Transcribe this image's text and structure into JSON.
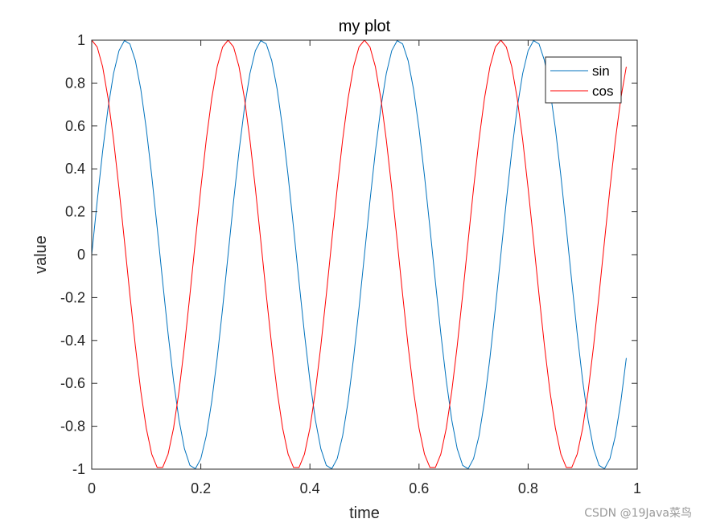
{
  "chart_data": {
    "type": "line",
    "title": "my plot",
    "xlabel": "time",
    "ylabel": "value",
    "xlim": [
      0,
      1
    ],
    "ylim": [
      -1,
      1
    ],
    "xticks": [
      0,
      0.2,
      0.4,
      0.6,
      0.8,
      1
    ],
    "xtick_labels": [
      "0",
      "0.2",
      "0.4",
      "0.6",
      "0.8",
      "1"
    ],
    "yticks": [
      1,
      0.8,
      0.6,
      0.4,
      0.2,
      0,
      -0.2,
      -0.4,
      -0.6,
      -0.8,
      -1
    ],
    "ytick_labels": [
      "1",
      "0.8",
      "0.6",
      "0.4",
      "0.2",
      "0",
      "-0.2",
      "-0.4",
      "-0.6",
      "-0.8",
      "-1"
    ],
    "grid": false,
    "legend_position": "top-right",
    "series": [
      {
        "name": "sin",
        "color": "#0072BD",
        "x": [
          0,
          0.01,
          0.02,
          0.03,
          0.04,
          0.05,
          0.06,
          0.07,
          0.08,
          0.09,
          0.1,
          0.11,
          0.12,
          0.13,
          0.14,
          0.15,
          0.16,
          0.17,
          0.18,
          0.19,
          0.2,
          0.21,
          0.22,
          0.23,
          0.24,
          0.25,
          0.26,
          0.27,
          0.28,
          0.29,
          0.3,
          0.31,
          0.32,
          0.33,
          0.34,
          0.35,
          0.36,
          0.37,
          0.38,
          0.39,
          0.4,
          0.41,
          0.42,
          0.43,
          0.44,
          0.45,
          0.46,
          0.47,
          0.48,
          0.49,
          0.5,
          0.51,
          0.52,
          0.53,
          0.54,
          0.55,
          0.56,
          0.57,
          0.58,
          0.59,
          0.6,
          0.61,
          0.62,
          0.63,
          0.64,
          0.65,
          0.66,
          0.67,
          0.68,
          0.69,
          0.7,
          0.71,
          0.72,
          0.73,
          0.74,
          0.75,
          0.76,
          0.77,
          0.78,
          0.79,
          0.8,
          0.81,
          0.82,
          0.83,
          0.84,
          0.85,
          0.86,
          0.87,
          0.88,
          0.89,
          0.9,
          0.91,
          0.92,
          0.93,
          0.94,
          0.95,
          0.96,
          0.97,
          0.98
        ],
        "y": [
          0,
          0.2487,
          0.4818,
          0.6845,
          0.8443,
          0.9511,
          0.998,
          0.9823,
          0.9048,
          0.7705,
          0.5878,
          0.3681,
          0.1253,
          -0.1253,
          -0.3681,
          -0.5878,
          -0.7705,
          -0.9048,
          -0.9823,
          -0.998,
          -0.9511,
          -0.8443,
          -0.6845,
          -0.4818,
          -0.2487,
          0,
          0.2487,
          0.4818,
          0.6845,
          0.8443,
          0.9511,
          0.998,
          0.9823,
          0.9048,
          0.7705,
          0.5878,
          0.3681,
          0.1253,
          -0.1253,
          -0.3681,
          -0.5878,
          -0.7705,
          -0.9048,
          -0.9823,
          -0.998,
          -0.9511,
          -0.8443,
          -0.6845,
          -0.4818,
          -0.2487,
          0,
          0.2487,
          0.4818,
          0.6845,
          0.8443,
          0.9511,
          0.998,
          0.9823,
          0.9048,
          0.7705,
          0.5878,
          0.3681,
          0.1253,
          -0.1253,
          -0.3681,
          -0.5878,
          -0.7705,
          -0.9048,
          -0.9823,
          -0.998,
          -0.9511,
          -0.8443,
          -0.6845,
          -0.4818,
          -0.2487,
          0,
          0.2487,
          0.4818,
          0.6845,
          0.8443,
          0.9511,
          0.998,
          0.9823,
          0.9048,
          0.7705,
          0.5878,
          0.3681,
          0.1253,
          -0.1253,
          -0.3681,
          -0.5878,
          -0.7705,
          -0.9048,
          -0.9823,
          -0.998,
          -0.9511,
          -0.8443,
          -0.6845,
          -0.4818
        ]
      },
      {
        "name": "cos",
        "color": "#FF0000",
        "x": [
          0,
          0.01,
          0.02,
          0.03,
          0.04,
          0.05,
          0.06,
          0.07,
          0.08,
          0.09,
          0.1,
          0.11,
          0.12,
          0.13,
          0.14,
          0.15,
          0.16,
          0.17,
          0.18,
          0.19,
          0.2,
          0.21,
          0.22,
          0.23,
          0.24,
          0.25,
          0.26,
          0.27,
          0.28,
          0.29,
          0.3,
          0.31,
          0.32,
          0.33,
          0.34,
          0.35,
          0.36,
          0.37,
          0.38,
          0.39,
          0.4,
          0.41,
          0.42,
          0.43,
          0.44,
          0.45,
          0.46,
          0.47,
          0.48,
          0.49,
          0.5,
          0.51,
          0.52,
          0.53,
          0.54,
          0.55,
          0.56,
          0.57,
          0.58,
          0.59,
          0.6,
          0.61,
          0.62,
          0.63,
          0.64,
          0.65,
          0.66,
          0.67,
          0.68,
          0.69,
          0.7,
          0.71,
          0.72,
          0.73,
          0.74,
          0.75,
          0.76,
          0.77,
          0.78,
          0.79,
          0.8,
          0.81,
          0.82,
          0.83,
          0.84,
          0.85,
          0.86,
          0.87,
          0.88,
          0.89,
          0.9,
          0.91,
          0.92,
          0.93,
          0.94,
          0.95,
          0.96,
          0.97,
          0.98
        ],
        "y": [
          1,
          0.9686,
          0.8763,
          0.729,
          0.5358,
          0.309,
          0.0628,
          -0.1874,
          -0.4258,
          -0.6374,
          -0.809,
          -0.9298,
          -0.9921,
          -0.9921,
          -0.9298,
          -0.809,
          -0.6374,
          -0.4258,
          -0.1874,
          0.0628,
          0.309,
          0.5358,
          0.729,
          0.8763,
          0.9686,
          1,
          0.9686,
          0.8763,
          0.729,
          0.5358,
          0.309,
          0.0628,
          -0.1874,
          -0.4258,
          -0.6374,
          -0.809,
          -0.9298,
          -0.9921,
          -0.9921,
          -0.9298,
          -0.809,
          -0.6374,
          -0.4258,
          -0.1874,
          0.0628,
          0.309,
          0.5358,
          0.729,
          0.8763,
          0.9686,
          1,
          0.9686,
          0.8763,
          0.729,
          0.5358,
          0.309,
          0.0628,
          -0.1874,
          -0.4258,
          -0.6374,
          -0.809,
          -0.9298,
          -0.9921,
          -0.9921,
          -0.9298,
          -0.809,
          -0.6374,
          -0.4258,
          -0.1874,
          0.0628,
          0.309,
          0.5358,
          0.729,
          0.8763,
          0.9686,
          1,
          0.9686,
          0.8763,
          0.729,
          0.5358,
          0.309,
          0.0628,
          -0.1874,
          -0.4258,
          -0.6374,
          -0.809,
          -0.9298,
          -0.9921,
          -0.9921,
          -0.9298,
          -0.809,
          -0.6374,
          -0.4258,
          -0.1874,
          0.0628,
          0.309,
          0.5358,
          0.729,
          0.8763
        ]
      }
    ]
  },
  "watermark": "CSDN @19Java菜鸟"
}
